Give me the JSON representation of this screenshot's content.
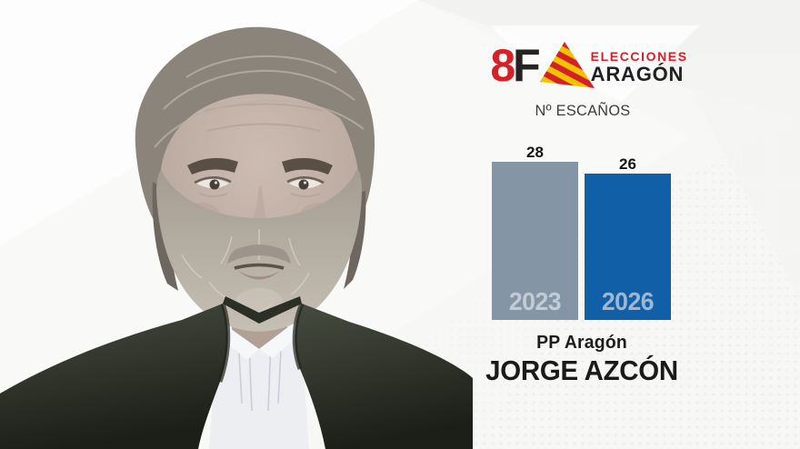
{
  "logo": {
    "day_number": "8",
    "day_letter": "F",
    "line1": "ELECCIONES",
    "line2": "ARAGÓN",
    "brand_red": "#d42127",
    "brand_dark": "#262220",
    "flag_yellow": "#f2c200",
    "flag_red": "#d42127"
  },
  "chart_data": {
    "type": "bar",
    "title": "Nº ESCAÑOS",
    "categories": [
      "2023",
      "2026"
    ],
    "values": [
      28,
      26
    ],
    "ylim": [
      0,
      30
    ],
    "grid": false,
    "legend": "none",
    "value_labels_position": "above-bars",
    "category_labels_position": "inside-bottom",
    "bar_colors": [
      "#8496a6",
      "#1160a7"
    ],
    "category_label_colors": [
      "#c3cbd4",
      "#9cb7d3"
    ],
    "value_label_color": "#141414"
  },
  "candidate": {
    "party": "PP Aragón",
    "name": "JORGE AZCÓN"
  }
}
